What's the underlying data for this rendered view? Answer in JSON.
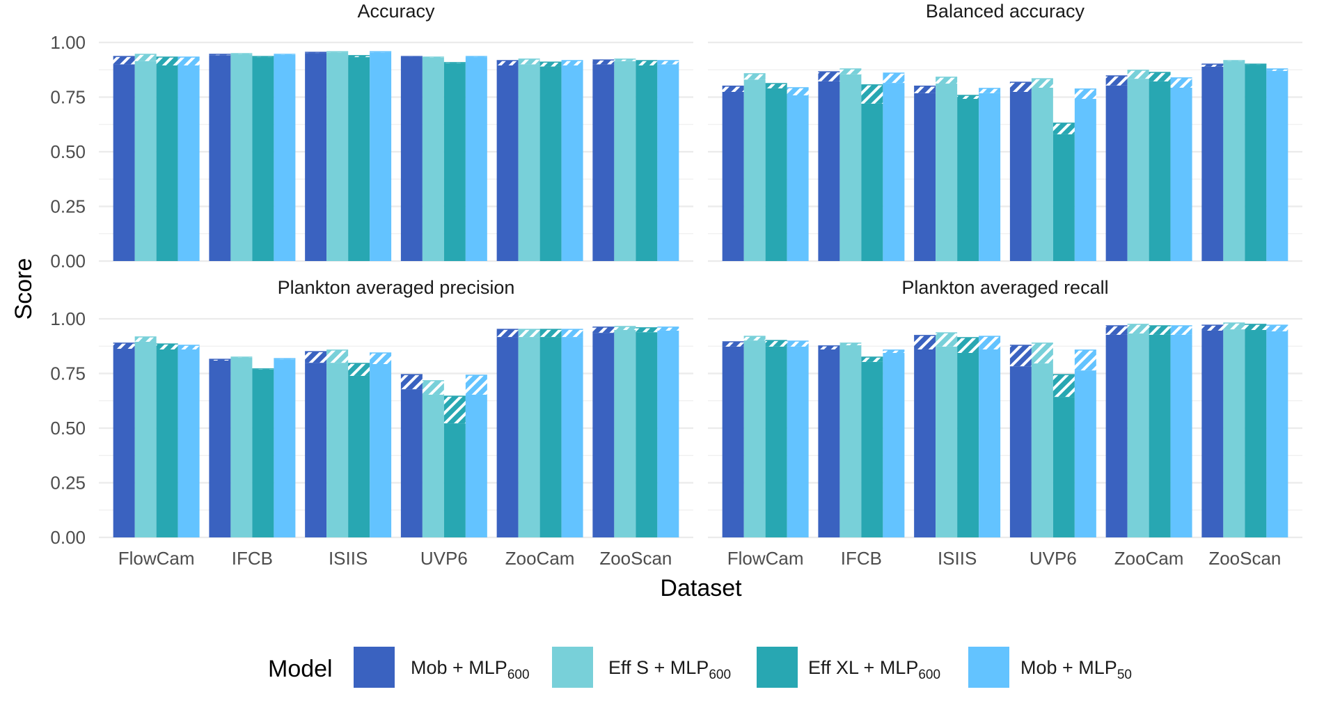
{
  "chart_data": {
    "type": "bar",
    "subtype": "faceted grouped bar with hatched range segment",
    "xlabel": "Dataset",
    "ylabel": "Score",
    "ylim": [
      0,
      1
    ],
    "yticks": [
      "0.00",
      "0.25",
      "0.50",
      "0.75",
      "1.00"
    ],
    "ytick_values": [
      0,
      0.25,
      0.5,
      0.75,
      1.0
    ],
    "grid": true,
    "categories": [
      "FlowCam",
      "IFCB",
      "ISIIS",
      "UVP6",
      "ZooCam",
      "ZooScan"
    ],
    "legend": {
      "title": "Model",
      "position": "bottom",
      "entries": [
        {
          "base": "Mob + MLP",
          "sub": "600",
          "color": "#3A62C0"
        },
        {
          "base": "Eff S + MLP",
          "sub": "600",
          "color": "#78D0D9"
        },
        {
          "base": "Eff XL + MLP",
          "sub": "600",
          "color": "#28A7B2"
        },
        {
          "base": "Mob + MLP",
          "sub": "50",
          "color": "#63C3FF"
        }
      ]
    },
    "series_names": [
      "Mob + MLP600",
      "Eff S + MLP600",
      "Eff XL + MLP600",
      "Mob + MLP50"
    ],
    "note": "Each bar: solid fill up to 'low', hatched segment from 'low' to 'high'.",
    "panels": [
      {
        "title": "Accuracy",
        "series": [
          {
            "name": "Mob + MLP600",
            "high": [
              0.936,
              0.946,
              0.955,
              0.936,
              0.917,
              0.92
            ],
            "low": [
              0.9,
              0.942,
              0.952,
              0.934,
              0.895,
              0.9
            ]
          },
          {
            "name": "Eff S + MLP600",
            "high": [
              0.946,
              0.949,
              0.958,
              0.933,
              0.924,
              0.924
            ],
            "low": [
              0.915,
              0.946,
              0.955,
              0.93,
              0.9,
              0.915
            ]
          },
          {
            "name": "Eff XL + MLP600",
            "high": [
              0.933,
              0.936,
              0.94,
              0.908,
              0.91,
              0.917
            ],
            "low": [
              0.895,
              0.933,
              0.933,
              0.905,
              0.89,
              0.895
            ]
          },
          {
            "name": "Mob + MLP50",
            "high": [
              0.933,
              0.946,
              0.958,
              0.936,
              0.917,
              0.917
            ],
            "low": [
              0.895,
              0.943,
              0.955,
              0.933,
              0.895,
              0.9
            ]
          }
        ]
      },
      {
        "title": "Balanced accuracy",
        "series": [
          {
            "name": "Mob + MLP600",
            "high": [
              0.8,
              0.866,
              0.8,
              0.818,
              0.847,
              0.901
            ],
            "low": [
              0.774,
              0.822,
              0.768,
              0.774,
              0.803,
              0.889
            ]
          },
          {
            "name": "Eff S + MLP600",
            "high": [
              0.857,
              0.879,
              0.841,
              0.834,
              0.873,
              0.917
            ],
            "low": [
              0.83,
              0.854,
              0.812,
              0.793,
              0.834,
              0.914
            ]
          },
          {
            "name": "Eff XL + MLP600",
            "high": [
              0.812,
              0.806,
              0.758,
              0.631,
              0.863,
              0.901
            ],
            "low": [
              0.79,
              0.72,
              0.742,
              0.58,
              0.822,
              0.898
            ]
          },
          {
            "name": "Mob + MLP50",
            "high": [
              0.793,
              0.86,
              0.79,
              0.787,
              0.838,
              0.879
            ],
            "low": [
              0.758,
              0.815,
              0.768,
              0.742,
              0.793,
              0.87
            ]
          }
        ]
      },
      {
        "title": "Plankton averaged precision",
        "series": [
          {
            "name": "Mob + MLP600",
            "high": [
              0.889,
              0.815,
              0.85,
              0.745,
              0.952,
              0.962
            ],
            "low": [
              0.863,
              0.809,
              0.799,
              0.678,
              0.917,
              0.936
            ]
          },
          {
            "name": "Eff S + MLP600",
            "high": [
              0.917,
              0.825,
              0.857,
              0.717,
              0.952,
              0.965
            ],
            "low": [
              0.895,
              0.822,
              0.799,
              0.653,
              0.917,
              0.949
            ]
          },
          {
            "name": "Eff XL + MLP600",
            "high": [
              0.885,
              0.771,
              0.796,
              0.646,
              0.952,
              0.959
            ],
            "low": [
              0.86,
              0.768,
              0.739,
              0.522,
              0.917,
              0.939
            ]
          },
          {
            "name": "Mob + MLP50",
            "high": [
              0.879,
              0.818,
              0.844,
              0.742,
              0.952,
              0.962
            ],
            "low": [
              0.86,
              0.815,
              0.793,
              0.653,
              0.917,
              0.946
            ]
          }
        ]
      },
      {
        "title": "Plankton averaged recall",
        "series": [
          {
            "name": "Mob + MLP600",
            "high": [
              0.895,
              0.876,
              0.924,
              0.879,
              0.968,
              0.971
            ],
            "low": [
              0.873,
              0.86,
              0.86,
              0.783,
              0.927,
              0.946
            ]
          },
          {
            "name": "Eff S + MLP600",
            "high": [
              0.92,
              0.889,
              0.936,
              0.889,
              0.975,
              0.981
            ],
            "low": [
              0.901,
              0.879,
              0.873,
              0.796,
              0.933,
              0.952
            ]
          },
          {
            "name": "Eff XL + MLP600",
            "high": [
              0.901,
              0.825,
              0.914,
              0.745,
              0.968,
              0.975
            ],
            "low": [
              0.873,
              0.803,
              0.844,
              0.643,
              0.927,
              0.949
            ]
          },
          {
            "name": "Mob + MLP50",
            "high": [
              0.898,
              0.857,
              0.92,
              0.857,
              0.968,
              0.971
            ],
            "low": [
              0.873,
              0.844,
              0.86,
              0.764,
              0.927,
              0.943
            ]
          }
        ]
      }
    ]
  }
}
